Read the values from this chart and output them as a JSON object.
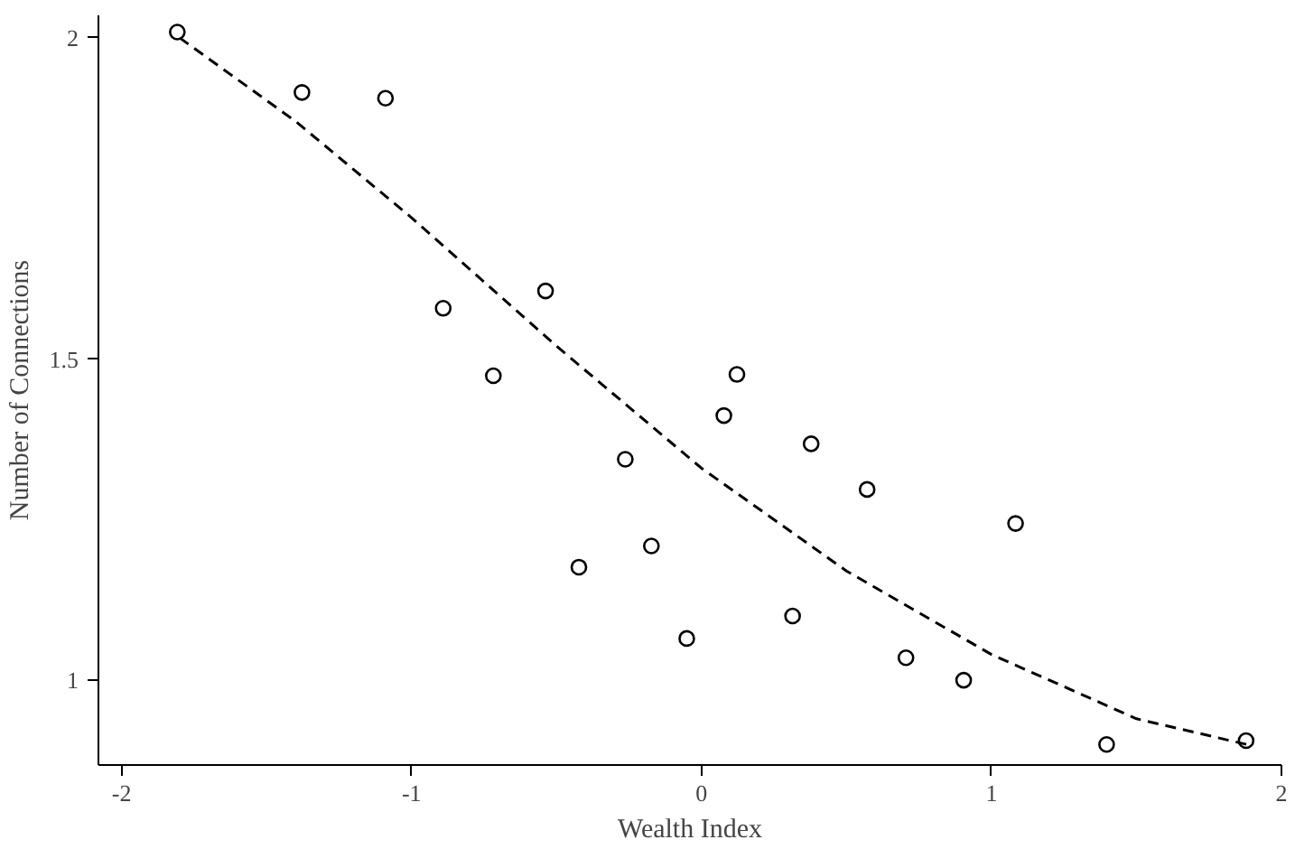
{
  "chart_data": {
    "type": "scatter",
    "xlabel": "Wealth Index",
    "ylabel": "Number of Connections",
    "xlim": [
      -2.08,
      2.0
    ],
    "ylim": [
      0.868,
      2.035
    ],
    "xticks": [
      -2,
      -1,
      0,
      1,
      2
    ],
    "yticks": [
      1,
      1.5,
      2
    ],
    "grid": false,
    "series": [
      {
        "marker": "circle",
        "color": "#000000",
        "x": [
          -1.808,
          -1.378,
          -1.09,
          -0.891,
          -0.718,
          -0.538,
          -0.423,
          -0.263,
          -0.173,
          -0.051,
          0.077,
          0.122,
          0.314,
          0.378,
          0.571,
          0.705,
          0.904,
          1.083,
          1.397,
          1.878
        ],
        "values": [
          2.009,
          1.915,
          1.906,
          1.579,
          1.474,
          1.606,
          1.176,
          1.344,
          1.209,
          1.065,
          1.412,
          1.476,
          1.1,
          1.368,
          1.297,
          1.035,
          1.0,
          1.244,
          0.9,
          0.906
        ]
      },
      {
        "type": "line",
        "line_style": "dashed",
        "color": "#000000",
        "x": [
          -1.8,
          -1.4,
          -1.0,
          -0.5,
          0,
          0.5,
          1.0,
          1.5,
          1.88
        ],
        "values": [
          2.0,
          1.87,
          1.72,
          1.52,
          1.33,
          1.17,
          1.04,
          0.94,
          0.9
        ]
      }
    ]
  }
}
